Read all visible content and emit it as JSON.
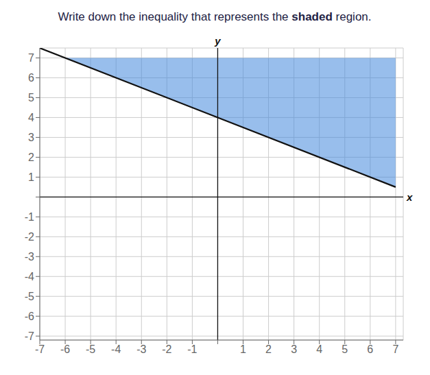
{
  "chart_data": {
    "type": "line",
    "title": [
      "Write down the inequality that represents the ",
      "shaded",
      " region."
    ],
    "x_label": "x",
    "y_label": "y",
    "xlim": [
      -7,
      7.3
    ],
    "ylim": [
      -7.2,
      7.5
    ],
    "xticks": [
      -7,
      -6,
      -5,
      -4,
      -3,
      -2,
      -1,
      {
        "value": 0,
        "label": ""
      },
      1,
      2,
      3,
      4,
      5,
      6,
      7
    ],
    "yticks": [
      -7,
      -6,
      -5,
      -4,
      -3,
      -2,
      -1,
      {
        "value": 0,
        "label": ""
      },
      1,
      2,
      3,
      4,
      5,
      6,
      7
    ],
    "grid": true,
    "series": [
      {
        "type": "area",
        "color": "#4488dd",
        "x": [
          -6,
          7
        ],
        "values": [
          7,
          0.5
        ],
        "upper": [
          7,
          7
        ]
      },
      {
        "type": "line",
        "color": "#111111",
        "x": [
          -7,
          7
        ],
        "values": [
          7.5,
          0.5
        ]
      }
    ]
  }
}
